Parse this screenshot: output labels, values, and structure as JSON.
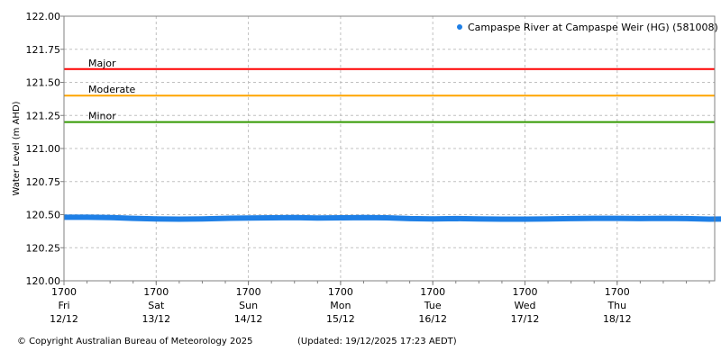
{
  "chart_data": {
    "type": "line",
    "title": "",
    "xlabel": "",
    "ylabel": "Water Level (m AHD)",
    "ylim": [
      120.0,
      122.0
    ],
    "yticks": [
      "120.00",
      "120.25",
      "120.50",
      "120.75",
      "121.00",
      "121.25",
      "121.50",
      "121.75",
      "122.00"
    ],
    "xlim": [
      "2025-12-12 17:00",
      "2025-12-19 18:30"
    ],
    "xticks": [
      {
        "time": "1700",
        "day": "Fri",
        "date": "12/12"
      },
      {
        "time": "1700",
        "day": "Sat",
        "date": "13/12"
      },
      {
        "time": "1700",
        "day": "Sun",
        "date": "14/12"
      },
      {
        "time": "1700",
        "day": "Mon",
        "date": "15/12"
      },
      {
        "time": "1700",
        "day": "Tue",
        "date": "16/12"
      },
      {
        "time": "1700",
        "day": "Wed",
        "date": "17/12"
      },
      {
        "time": "1700",
        "day": "Thu",
        "date": "18/12"
      }
    ],
    "grid": true,
    "legend_position": "top-right",
    "thresholds": [
      {
        "label": "Major",
        "value": 121.6,
        "color": "#ff0000"
      },
      {
        "label": "Moderate",
        "value": 121.4,
        "color": "#ffa500"
      },
      {
        "label": "Minor",
        "value": 121.2,
        "color": "#339900"
      }
    ],
    "series": [
      {
        "name": "Campaspe River at Campaspe Weir (HG) (581008)",
        "color": "#1e7fe6",
        "x_start": "2025-12-12 17:00",
        "x_step_hours": 6,
        "values": [
          120.48,
          120.48,
          120.478,
          120.472,
          120.468,
          120.466,
          120.468,
          120.472,
          120.474,
          120.476,
          120.478,
          120.474,
          120.476,
          120.478,
          120.476,
          120.47,
          120.468,
          120.47,
          120.468,
          120.466,
          120.466,
          120.468,
          120.47,
          120.472,
          120.472,
          120.47,
          120.472,
          120.47,
          120.466,
          120.468
        ]
      }
    ]
  },
  "footer": {
    "copyright": "© Copyright Australian Bureau of Meteorology 2025",
    "updated": "(Updated: 19/12/2025 17:23 AEDT)"
  }
}
